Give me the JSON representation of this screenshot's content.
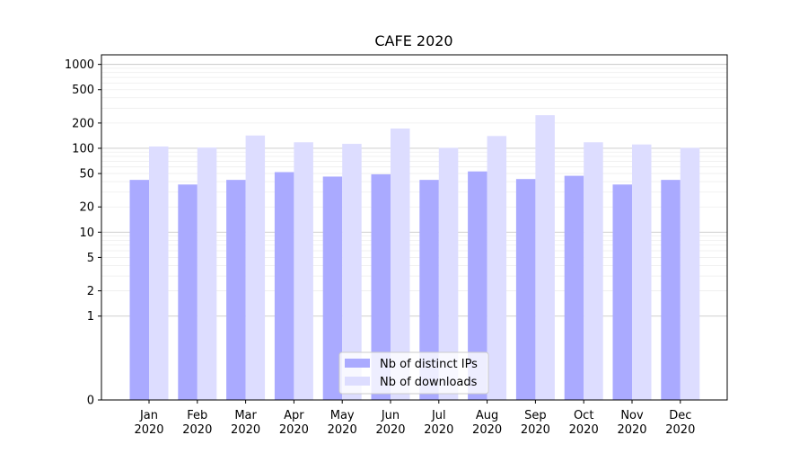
{
  "chart_data": {
    "type": "bar",
    "title": "CAFE 2020",
    "xlabel": "",
    "ylabel": "",
    "yscale": "symlog",
    "ylim": [
      0,
      1300
    ],
    "yticks": [
      0,
      1,
      2,
      5,
      10,
      20,
      50,
      100,
      200,
      500,
      1000
    ],
    "ytick_labels": [
      "0",
      "1",
      "2",
      "5",
      "10",
      "20",
      "50",
      "100",
      "200",
      "500",
      "1000"
    ],
    "categories": [
      "Jan\n2020",
      "Feb\n2020",
      "Mar\n2020",
      "Apr\n2020",
      "May\n2020",
      "Jun\n2020",
      "Jul\n2020",
      "Aug\n2020",
      "Sep\n2020",
      "Oct\n2020",
      "Nov\n2020",
      "Dec\n2020"
    ],
    "series": [
      {
        "name": "Nb of distinct IPs",
        "color": "#aaaaff",
        "values": [
          42,
          37,
          42,
          52,
          46,
          49,
          42,
          53,
          43,
          47,
          37,
          42
        ]
      },
      {
        "name": "Nb of downloads",
        "color": "#ddddff",
        "values": [
          105,
          102,
          142,
          118,
          113,
          172,
          101,
          140,
          248,
          118,
          111,
          101
        ]
      }
    ],
    "grid": true,
    "legend_position": "bottom-center"
  }
}
